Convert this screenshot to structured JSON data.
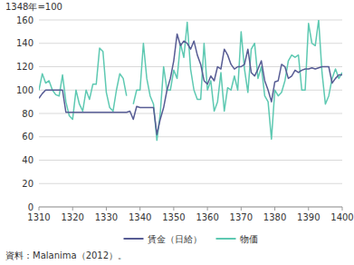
{
  "chart_data": {
    "type": "line",
    "ylabel": "1348年=100",
    "source": "資料：Malanima（2012）。",
    "x": [
      1310,
      1311,
      1312,
      1313,
      1314,
      1315,
      1316,
      1317,
      1318,
      1319,
      1320,
      1321,
      1322,
      1323,
      1324,
      1325,
      1326,
      1327,
      1328,
      1329,
      1330,
      1331,
      1332,
      1333,
      1334,
      1335,
      1336,
      1337,
      1338,
      1339,
      1340,
      1341,
      1342,
      1343,
      1344,
      1345,
      1346,
      1347,
      1348,
      1349,
      1350,
      1351,
      1352,
      1353,
      1354,
      1355,
      1356,
      1357,
      1358,
      1359,
      1360,
      1361,
      1362,
      1363,
      1364,
      1365,
      1366,
      1367,
      1368,
      1369,
      1370,
      1371,
      1372,
      1373,
      1374,
      1375,
      1376,
      1377,
      1378,
      1379,
      1380,
      1381,
      1382,
      1383,
      1384,
      1385,
      1386,
      1387,
      1388,
      1389,
      1390,
      1391,
      1392,
      1393,
      1394,
      1395,
      1396,
      1397,
      1398,
      1399,
      1400
    ],
    "series": [
      {
        "name": "賃金（日給）",
        "color": "#575c94",
        "values": [
          93,
          97,
          100,
          100,
          100,
          100,
          100,
          100,
          81,
          81,
          81,
          81,
          81,
          81,
          81,
          81,
          81,
          81,
          81,
          81,
          81,
          81,
          81,
          81,
          81,
          81,
          81,
          82,
          75,
          86,
          85,
          85,
          85,
          85,
          85,
          62,
          75,
          85,
          100,
          110,
          125,
          148,
          138,
          142,
          140,
          135,
          142,
          130,
          122,
          108,
          105,
          112,
          108,
          120,
          118,
          135,
          130,
          122,
          118,
          120,
          120,
          122,
          135,
          115,
          112,
          118,
          125,
          108,
          100,
          90,
          107,
          108,
          122,
          120,
          110,
          112,
          117,
          115,
          117,
          118,
          118,
          119,
          118,
          119,
          120,
          120,
          120,
          106,
          110,
          113,
          113
        ]
      },
      {
        "name": "物価",
        "color": "#5ec9b2",
        "values": [
          100,
          114,
          106,
          108,
          100,
          96,
          95,
          113,
          90,
          78,
          75,
          100,
          88,
          82,
          100,
          92,
          105,
          105,
          136,
          133,
          98,
          85,
          82,
          100,
          114,
          110,
          95,
          null,
          88,
          100,
          100,
          140,
          110,
          95,
          88,
          57,
          80,
          120,
          100,
          100,
          117,
          110,
          140,
          128,
          158,
          118,
          100,
          92,
          92,
          140,
          100,
          108,
          82,
          90,
          115,
          82,
          102,
          100,
          112,
          100,
          150,
          118,
          98,
          135,
          140,
          110,
          120,
          95,
          90,
          58,
          100,
          95,
          98,
          108,
          125,
          130,
          128,
          130,
          100,
          100,
          157,
          140,
          138,
          160,
          115,
          88,
          95,
          110,
          118,
          110,
          115
        ]
      }
    ],
    "xlim": [
      1310,
      1400
    ],
    "xticks": [
      1310,
      1320,
      1330,
      1340,
      1350,
      1360,
      1370,
      1380,
      1390,
      1400
    ],
    "ylim": [
      0,
      160
    ],
    "yticks": [
      0,
      20,
      40,
      60,
      80,
      100,
      120,
      140,
      160
    ],
    "grid": true,
    "legend": "bottom"
  }
}
